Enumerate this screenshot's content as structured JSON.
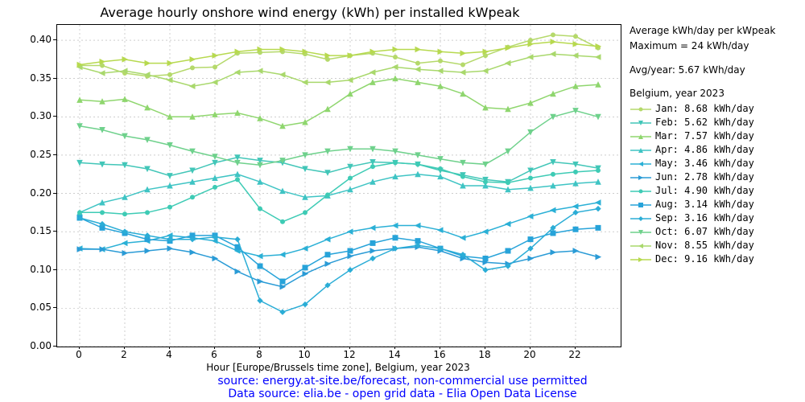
{
  "chart": {
    "type": "line",
    "title": "Average hourly onshore wind energy (kWh) per installed kWpeak",
    "xlabel": "Hour [Europe/Brussels time zone], Belgium, year 2023",
    "title_fontsize": 16,
    "label_fontsize": 12,
    "tick_fontsize": 12,
    "background_color": "#ffffff",
    "grid_color": "#b0b0b0",
    "grid_dash": "2,3",
    "axis_color": "#000000",
    "source_color": "#0000ff",
    "source_fontsize": 14,
    "line_width": 1.5,
    "marker_size": 5,
    "x": [
      0,
      1,
      2,
      3,
      4,
      5,
      6,
      7,
      8,
      9,
      10,
      11,
      12,
      13,
      14,
      15,
      16,
      17,
      18,
      19,
      20,
      21,
      22,
      23
    ],
    "xlim": [
      -1,
      24
    ],
    "xtick_step": 2,
    "ylim": [
      0.0,
      0.42
    ],
    "yticks": [
      0.0,
      0.05,
      0.1,
      0.15,
      0.2,
      0.25,
      0.3,
      0.35,
      0.4
    ],
    "ytick_labels": [
      "0.00",
      "0.05",
      "0.10",
      "0.15",
      "0.20",
      "0.25",
      "0.30",
      "0.35",
      "0.40"
    ],
    "source_lines": [
      "source: energy.at-site.be/forecast, non-commercial use permitted",
      "Data source: elia.be - open grid data - Elia Open Data License"
    ],
    "legend": {
      "header1": "Average kWh/day per kWpeak",
      "header2": "Maximum = 24 kWh/day",
      "avg_line": "Avg/year: 5.67 kWh/day",
      "section": "Belgium, year 2023",
      "font": "monospace"
    },
    "series": [
      {
        "name": "Jan",
        "label": "Jan: 8.68 kWh/day",
        "color": "#b5d96b",
        "marker": "circle",
        "y": [
          0.367,
          0.367,
          0.357,
          0.353,
          0.355,
          0.364,
          0.365,
          0.383,
          0.384,
          0.385,
          0.382,
          0.375,
          0.38,
          0.383,
          0.378,
          0.37,
          0.373,
          0.368,
          0.38,
          0.391,
          0.4,
          0.407,
          0.405,
          0.39
        ]
      },
      {
        "name": "Feb",
        "label": "Feb: 5.62 kWh/day",
        "color": "#42c6b8",
        "marker": "triangle-down",
        "y": [
          0.24,
          0.238,
          0.237,
          0.232,
          0.223,
          0.23,
          0.24,
          0.247,
          0.243,
          0.24,
          0.232,
          0.227,
          0.235,
          0.241,
          0.24,
          0.238,
          0.23,
          0.224,
          0.218,
          0.215,
          0.23,
          0.241,
          0.238,
          0.233
        ]
      },
      {
        "name": "Mar",
        "label": "Mar: 7.57 kWh/day",
        "color": "#8fd66e",
        "marker": "triangle-up",
        "y": [
          0.322,
          0.32,
          0.323,
          0.312,
          0.3,
          0.3,
          0.303,
          0.305,
          0.298,
          0.288,
          0.293,
          0.31,
          0.33,
          0.345,
          0.35,
          0.345,
          0.34,
          0.33,
          0.312,
          0.31,
          0.318,
          0.33,
          0.34,
          0.342
        ]
      },
      {
        "name": "Apr",
        "label": "Apr: 4.86 kWh/day",
        "color": "#3fc4c4",
        "marker": "triangle-up",
        "y": [
          0.175,
          0.188,
          0.195,
          0.205,
          0.21,
          0.215,
          0.22,
          0.225,
          0.215,
          0.203,
          0.195,
          0.197,
          0.205,
          0.215,
          0.222,
          0.225,
          0.222,
          0.21,
          0.21,
          0.205,
          0.207,
          0.21,
          0.213,
          0.215
        ]
      },
      {
        "name": "May",
        "label": "May: 3.46 kWh/day",
        "color": "#2bb0d6",
        "marker": "triangle-left",
        "y": [
          0.128,
          0.127,
          0.135,
          0.138,
          0.145,
          0.142,
          0.138,
          0.125,
          0.118,
          0.12,
          0.128,
          0.14,
          0.15,
          0.155,
          0.158,
          0.158,
          0.152,
          0.142,
          0.15,
          0.16,
          0.17,
          0.178,
          0.183,
          0.188
        ]
      },
      {
        "name": "Jun",
        "label": "Jun: 2.78 kWh/day",
        "color": "#2a9bd6",
        "marker": "triangle-right",
        "y": [
          0.127,
          0.127,
          0.122,
          0.125,
          0.128,
          0.123,
          0.115,
          0.098,
          0.085,
          0.078,
          0.095,
          0.108,
          0.118,
          0.125,
          0.128,
          0.13,
          0.125,
          0.115,
          0.11,
          0.108,
          0.115,
          0.123,
          0.125,
          0.117
        ]
      },
      {
        "name": "Jul",
        "label": "Jul: 4.90 kWh/day",
        "color": "#3ecbb5",
        "marker": "circle",
        "y": [
          0.175,
          0.175,
          0.173,
          0.175,
          0.182,
          0.195,
          0.208,
          0.218,
          0.18,
          0.163,
          0.175,
          0.198,
          0.22,
          0.235,
          0.24,
          0.238,
          0.232,
          0.222,
          0.215,
          0.214,
          0.22,
          0.225,
          0.228,
          0.23
        ]
      },
      {
        "name": "Aug",
        "label": "Aug: 3.14 kWh/day",
        "color": "#27a3d9",
        "marker": "square",
        "y": [
          0.168,
          0.155,
          0.148,
          0.14,
          0.138,
          0.145,
          0.145,
          0.13,
          0.105,
          0.085,
          0.103,
          0.12,
          0.125,
          0.135,
          0.142,
          0.138,
          0.128,
          0.118,
          0.115,
          0.125,
          0.14,
          0.148,
          0.153,
          0.155
        ]
      },
      {
        "name": "Sep",
        "label": "Sep: 3.16 kWh/day",
        "color": "#2badd6",
        "marker": "diamond",
        "y": [
          0.168,
          0.16,
          0.15,
          0.145,
          0.14,
          0.14,
          0.143,
          0.14,
          0.06,
          0.045,
          0.055,
          0.08,
          0.1,
          0.115,
          0.128,
          0.132,
          0.128,
          0.12,
          0.1,
          0.105,
          0.128,
          0.155,
          0.175,
          0.18
        ]
      },
      {
        "name": "Oct",
        "label": "Oct: 6.07 kWh/day",
        "color": "#6fd18c",
        "marker": "triangle-down",
        "y": [
          0.288,
          0.283,
          0.275,
          0.27,
          0.263,
          0.255,
          0.248,
          0.24,
          0.237,
          0.243,
          0.25,
          0.255,
          0.258,
          0.258,
          0.255,
          0.25,
          0.245,
          0.24,
          0.238,
          0.255,
          0.28,
          0.3,
          0.308,
          0.3
        ]
      },
      {
        "name": "Nov",
        "label": "Nov: 8.55 kWh/day",
        "color": "#a9d86c",
        "marker": "triangle-left",
        "y": [
          0.365,
          0.357,
          0.36,
          0.355,
          0.348,
          0.34,
          0.345,
          0.358,
          0.36,
          0.355,
          0.345,
          0.345,
          0.348,
          0.358,
          0.365,
          0.362,
          0.36,
          0.358,
          0.36,
          0.37,
          0.378,
          0.382,
          0.38,
          0.378
        ]
      },
      {
        "name": "Dec",
        "label": "Dec: 9.16 kWh/day",
        "color": "#b7d94f",
        "marker": "triangle-right",
        "y": [
          0.368,
          0.372,
          0.375,
          0.37,
          0.37,
          0.375,
          0.38,
          0.385,
          0.388,
          0.388,
          0.385,
          0.38,
          0.38,
          0.385,
          0.388,
          0.388,
          0.385,
          0.383,
          0.385,
          0.39,
          0.395,
          0.398,
          0.395,
          0.392
        ]
      }
    ]
  }
}
